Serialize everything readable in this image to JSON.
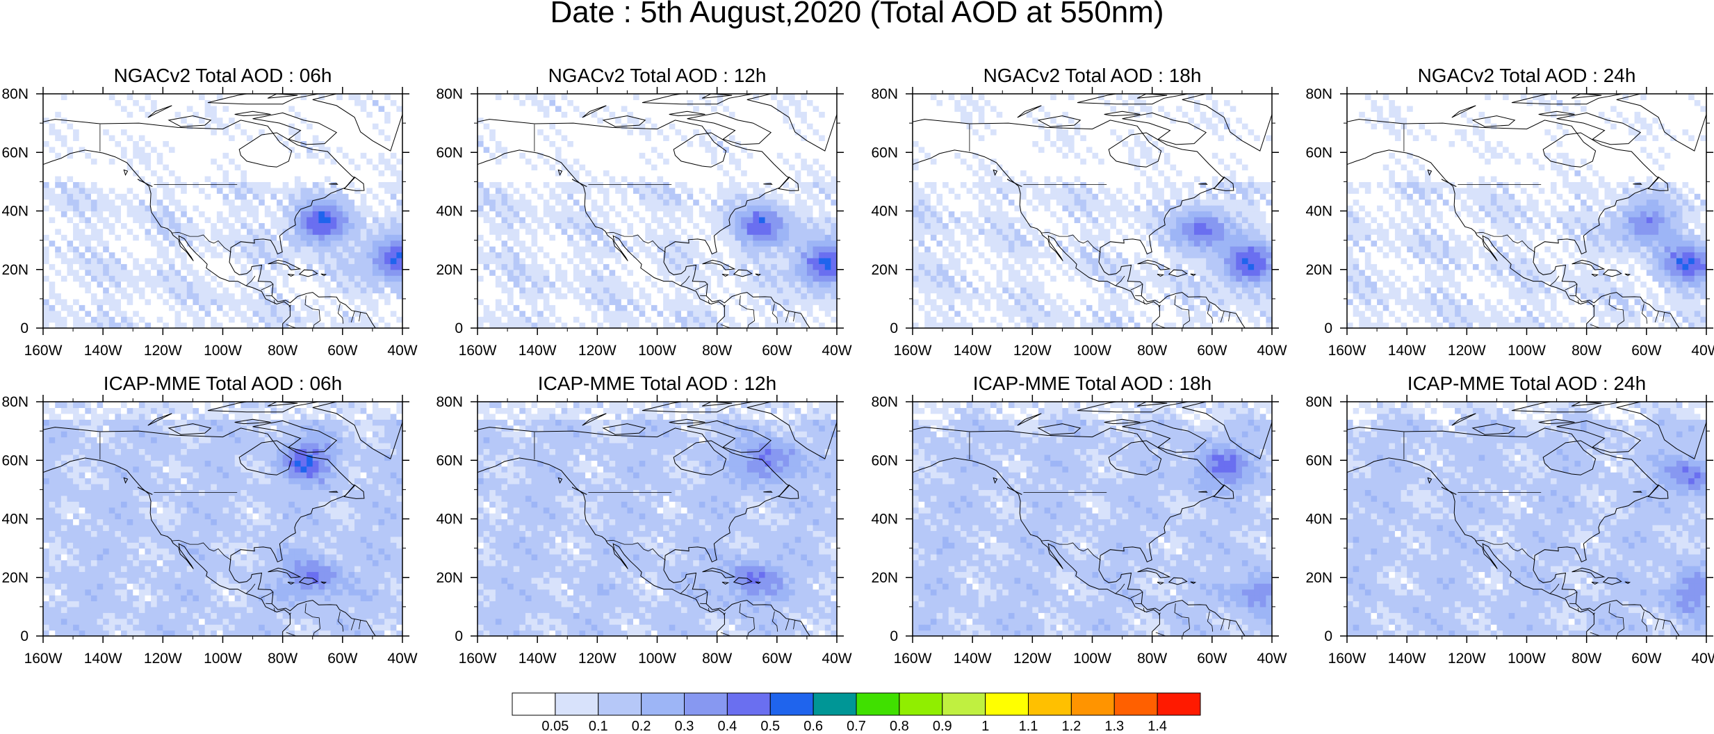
{
  "title": "Date : 5th August,2020 (Total AOD at 550nm)",
  "panels": [
    {
      "title": "NGACv2 Total AOD : 06h",
      "model": "NGACv2",
      "hour": 6,
      "plumes": [
        {
          "lon": -67,
          "lat": 36,
          "aod": 0.45
        },
        {
          "lon": -42,
          "lat": 24,
          "aod": 0.48
        }
      ]
    },
    {
      "title": "NGACv2 Total AOD : 12h",
      "model": "NGACv2",
      "hour": 12,
      "plumes": [
        {
          "lon": -65,
          "lat": 35,
          "aod": 0.4
        },
        {
          "lon": -44,
          "lat": 22,
          "aod": 0.48
        }
      ]
    },
    {
      "title": "NGACv2 Total AOD : 18h",
      "model": "NGACv2",
      "hour": 18,
      "plumes": [
        {
          "lon": -63,
          "lat": 34,
          "aod": 0.38
        },
        {
          "lon": -48,
          "lat": 22,
          "aod": 0.46
        }
      ]
    },
    {
      "title": "NGACv2 Total AOD : 24h",
      "model": "NGACv2",
      "hour": 24,
      "plumes": [
        {
          "lon": -60,
          "lat": 36,
          "aod": 0.35
        },
        {
          "lon": -46,
          "lat": 22,
          "aod": 0.42
        }
      ]
    },
    {
      "title": "ICAP-MME Total AOD : 06h",
      "model": "ICAP-MME",
      "hour": 6,
      "plumes": [
        {
          "lon": -72,
          "lat": 60,
          "aod": 0.35
        },
        {
          "lon": -70,
          "lat": 20,
          "aod": 0.3
        }
      ]
    },
    {
      "title": "ICAP-MME Total AOD : 12h",
      "model": "ICAP-MME",
      "hour": 12,
      "plumes": [
        {
          "lon": -63,
          "lat": 60,
          "aod": 0.32
        },
        {
          "lon": -68,
          "lat": 19,
          "aod": 0.3
        }
      ]
    },
    {
      "title": "ICAP-MME Total AOD : 18h",
      "model": "ICAP-MME",
      "hour": 18,
      "plumes": [
        {
          "lon": -57,
          "lat": 58,
          "aod": 0.3
        },
        {
          "lon": -45,
          "lat": 15,
          "aod": 0.25
        }
      ]
    },
    {
      "title": "ICAP-MME Total AOD : 24h",
      "model": "ICAP-MME",
      "hour": 24,
      "plumes": [
        {
          "lon": -45,
          "lat": 55,
          "aod": 0.28
        },
        {
          "lon": -45,
          "lat": 15,
          "aod": 0.26
        }
      ]
    }
  ],
  "axes": {
    "x_ticks": [
      "160W",
      "140W",
      "120W",
      "100W",
      "80W",
      "60W",
      "40W"
    ],
    "x_values": [
      -160,
      -140,
      -120,
      -100,
      -80,
      -60,
      -40
    ],
    "y_ticks": [
      "0",
      "20N",
      "40N",
      "60N",
      "80N"
    ],
    "y_values": [
      0,
      20,
      40,
      60,
      80
    ],
    "lon_range": [
      -160,
      -40
    ],
    "lat_range": [
      0,
      80
    ]
  },
  "colorbar": {
    "labels": [
      "0.05",
      "0.1",
      "0.2",
      "0.3",
      "0.4",
      "0.5",
      "0.6",
      "0.7",
      "0.8",
      "0.9",
      "1",
      "1.1",
      "1.2",
      "1.3",
      "1.4"
    ],
    "colors": [
      "#ffffff",
      "#d8e2fb",
      "#b6c8f8",
      "#9db5f6",
      "#8798f1",
      "#6a6ff0",
      "#1f64ed",
      "#009696",
      "#40e000",
      "#90ee00",
      "#c0f040",
      "#ffff00",
      "#ffc000",
      "#ff9400",
      "#ff6000",
      "#ff1a00"
    ]
  }
}
